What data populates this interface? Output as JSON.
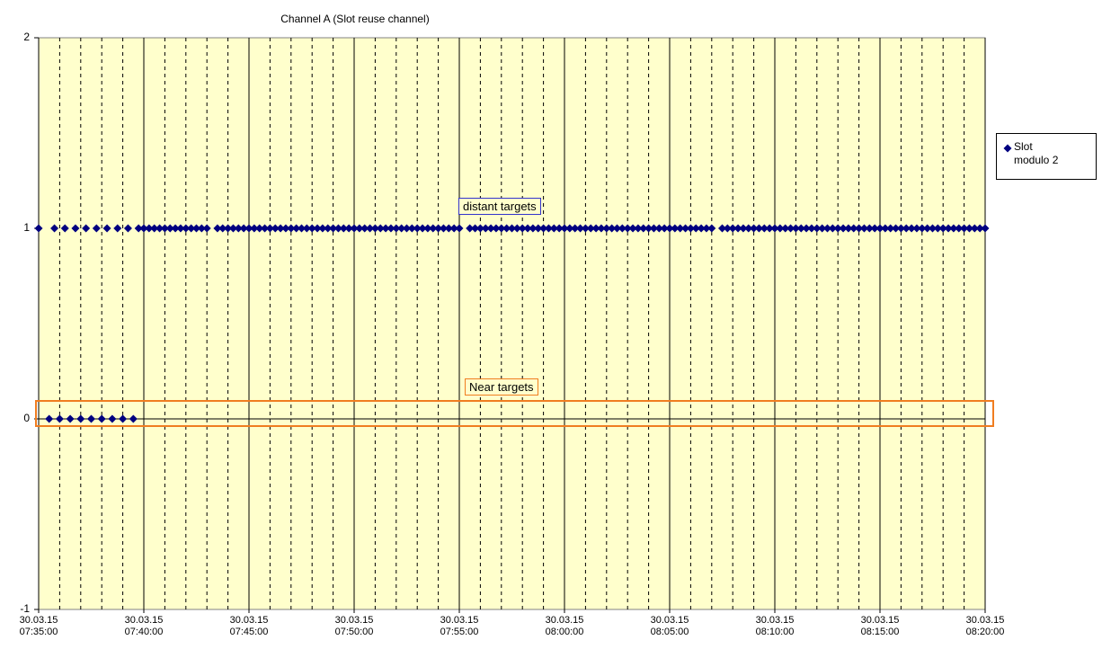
{
  "chart_data": {
    "type": "scatter",
    "title": "Channel A (Slot reuse channel)",
    "x": [
      "07:35:00",
      "07:35:30",
      "07:35:45",
      "07:36:00",
      "07:36:15",
      "07:36:30",
      "07:36:45",
      "07:37:00",
      "07:37:15",
      "07:37:30",
      "07:37:45",
      "07:38:00",
      "07:38:15",
      "07:38:30",
      "07:38:45",
      "07:39:00",
      "07:39:15",
      "07:39:30",
      "07:39:45",
      "07:40:00",
      "07:40:15",
      "07:40:30",
      "07:40:45",
      "07:41:00",
      "07:41:15",
      "07:41:30",
      "07:41:45",
      "07:42:00",
      "07:42:15",
      "07:42:30",
      "07:42:45",
      "07:43:00",
      "07:43:30",
      "07:43:45",
      "07:44:00",
      "07:44:15",
      "07:44:30",
      "07:44:45",
      "07:45:00",
      "07:45:15",
      "07:45:30",
      "07:45:45",
      "07:46:00",
      "07:46:15",
      "07:46:30",
      "07:46:45",
      "07:47:00",
      "07:47:15",
      "07:47:30",
      "07:47:45",
      "07:48:00",
      "07:48:15",
      "07:48:30",
      "07:48:45",
      "07:49:00",
      "07:49:15",
      "07:49:30",
      "07:49:45",
      "07:50:00",
      "07:50:15",
      "07:50:30",
      "07:50:45",
      "07:51:00",
      "07:51:15",
      "07:51:30",
      "07:51:45",
      "07:52:00",
      "07:52:15",
      "07:52:30",
      "07:52:45",
      "07:53:00",
      "07:53:15",
      "07:53:30",
      "07:53:45",
      "07:54:00",
      "07:54:15",
      "07:54:30",
      "07:54:45",
      "07:55:00",
      "07:55:30",
      "07:55:45",
      "07:56:00",
      "07:56:15",
      "07:56:30",
      "07:56:45",
      "07:57:00",
      "07:57:15",
      "07:57:30",
      "07:57:45",
      "07:58:00",
      "07:58:15",
      "07:58:30",
      "07:58:45",
      "07:59:00",
      "07:59:15",
      "07:59:30",
      "07:59:45",
      "08:00:00",
      "08:00:15",
      "08:00:30",
      "08:00:45",
      "08:01:00",
      "08:01:15",
      "08:01:30",
      "08:01:45",
      "08:02:00",
      "08:02:15",
      "08:02:30",
      "08:02:45",
      "08:03:00",
      "08:03:15",
      "08:03:30",
      "08:03:45",
      "08:04:00",
      "08:04:15",
      "08:04:30",
      "08:04:45",
      "08:05:00",
      "08:05:15",
      "08:05:30",
      "08:05:45",
      "08:06:00",
      "08:06:15",
      "08:06:30",
      "08:06:45",
      "08:07:00",
      "08:07:30",
      "08:07:45",
      "08:08:00",
      "08:08:15",
      "08:08:30",
      "08:08:45",
      "08:09:00",
      "08:09:15",
      "08:09:30",
      "08:09:45",
      "08:10:00",
      "08:10:15",
      "08:10:30",
      "08:10:45",
      "08:11:00",
      "08:11:15",
      "08:11:30",
      "08:11:45",
      "08:12:00",
      "08:12:15",
      "08:12:30",
      "08:12:45",
      "08:13:00",
      "08:13:15",
      "08:13:30",
      "08:13:45",
      "08:14:00",
      "08:14:15",
      "08:14:30",
      "08:14:45",
      "08:15:00",
      "08:15:15",
      "08:15:30",
      "08:15:45",
      "08:16:00",
      "08:16:15",
      "08:16:30",
      "08:16:45",
      "08:17:00",
      "08:17:15",
      "08:17:30",
      "08:17:45",
      "08:18:00",
      "08:18:15",
      "08:18:30",
      "08:18:45",
      "08:19:00",
      "08:19:15",
      "08:19:30",
      "08:19:45",
      "08:20:00"
    ],
    "series": [
      {
        "name": "Slot modulo 2",
        "color": "#000080",
        "values": [
          1,
          0,
          1,
          0,
          1,
          0,
          1,
          0,
          1,
          0,
          1,
          0,
          1,
          0,
          1,
          0,
          1,
          0,
          1,
          1,
          1,
          1,
          1,
          1,
          1,
          1,
          1,
          1,
          1,
          1,
          1,
          1,
          1,
          1,
          1,
          1,
          1,
          1,
          1,
          1,
          1,
          1,
          1,
          1,
          1,
          1,
          1,
          1,
          1,
          1,
          1,
          1,
          1,
          1,
          1,
          1,
          1,
          1,
          1,
          1,
          1,
          1,
          1,
          1,
          1,
          1,
          1,
          1,
          1,
          1,
          1,
          1,
          1,
          1,
          1,
          1,
          1,
          1,
          1,
          1,
          1,
          1,
          1,
          1,
          1,
          1,
          1,
          1,
          1,
          1,
          1,
          1,
          1,
          1,
          1,
          1,
          1,
          1,
          1,
          1,
          1,
          1,
          1,
          1,
          1,
          1,
          1,
          1,
          1,
          1,
          1,
          1,
          1,
          1,
          1,
          1,
          1,
          1,
          1,
          1,
          1,
          1,
          1,
          1,
          1,
          1,
          1,
          1,
          1,
          1,
          1,
          1,
          1,
          1,
          1,
          1,
          1,
          1,
          1,
          1,
          1,
          1,
          1,
          1,
          1,
          1,
          1,
          1,
          1,
          1,
          1,
          1,
          1,
          1,
          1,
          1,
          1,
          1,
          1,
          1,
          1,
          1,
          1,
          1,
          1,
          1,
          1,
          1,
          1,
          1,
          1,
          1,
          1,
          1,
          1,
          1,
          1
        ]
      }
    ],
    "xlim": [
      "07:35:00",
      "08:20:00"
    ],
    "xticks": [
      {
        "value": "07:35:00",
        "label": "30.03.15 07:35:00"
      },
      {
        "value": "07:40:00",
        "label": "30.03.15 07:40:00"
      },
      {
        "value": "07:45:00",
        "label": "30.03.15 07:45:00"
      },
      {
        "value": "07:50:00",
        "label": "30.03.15 07:50:00"
      },
      {
        "value": "07:55:00",
        "label": "30.03.15 07:55:00"
      },
      {
        "value": "08:00:00",
        "label": "30.03.15 08:00:00"
      },
      {
        "value": "08:05:00",
        "label": "30.03.15 08:05:00"
      },
      {
        "value": "08:10:00",
        "label": "30.03.15 08:10:00"
      },
      {
        "value": "08:15:00",
        "label": "30.03.15 08:15:00"
      },
      {
        "value": "08:20:00",
        "label": "30.03.15 08:20:00"
      }
    ],
    "ylim": [
      -1,
      2
    ],
    "yticks": [
      -1,
      0,
      1,
      2
    ],
    "grid": true,
    "minor_grid": true,
    "plot_background": "#ffffcc",
    "legend": "right",
    "annotations": [
      {
        "text": "distant targets",
        "border_color": "#3333cc"
      },
      {
        "text": "Near targets",
        "border_color": "#f07d20"
      }
    ]
  }
}
